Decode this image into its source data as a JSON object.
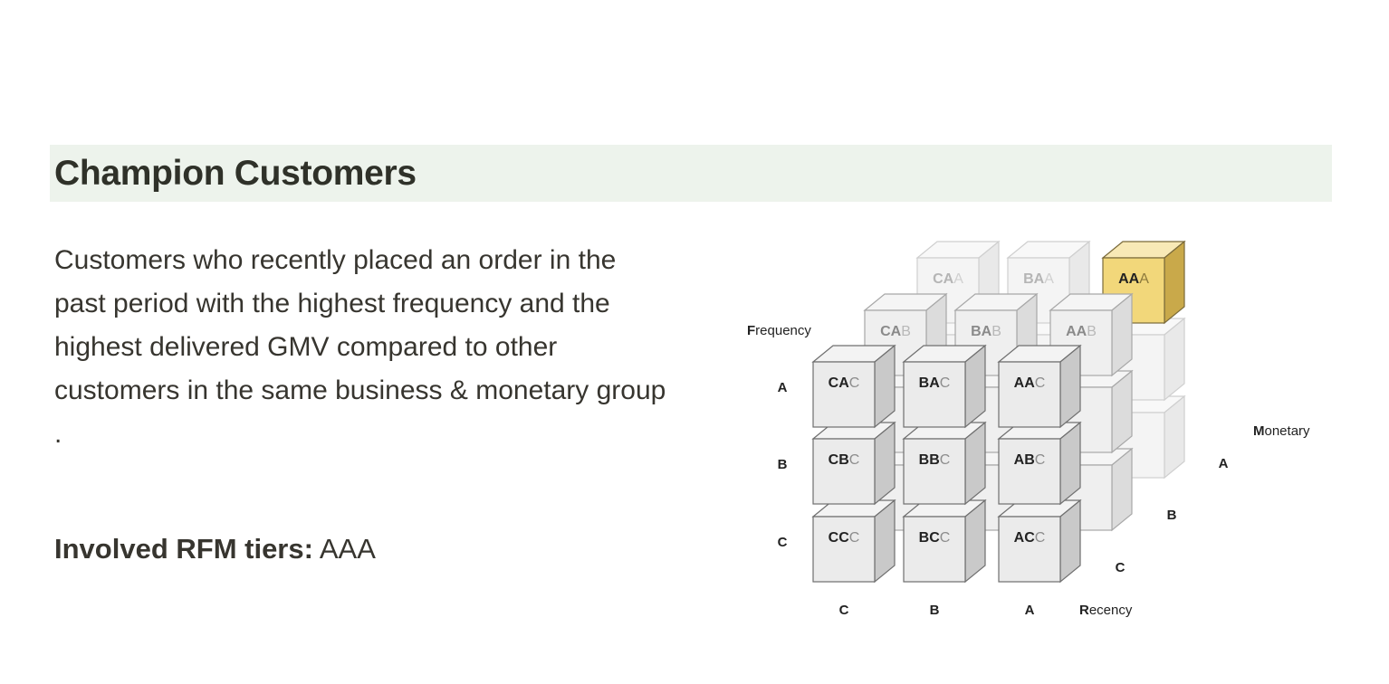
{
  "section": {
    "title": "Champion Customers",
    "description": "Customers who recently placed an order in the past period with the highest frequency and the highest delivered GMV compared to other customers in the same business & monetary group .",
    "tiers_label": "Involved RFM tiers:",
    "tiers_value": "AAA",
    "highlight_color": "#edf3ec"
  },
  "diagram": {
    "axes": {
      "frequency": {
        "name": "Frequency",
        "levels": [
          "A",
          "B",
          "C"
        ]
      },
      "recency": {
        "name": "Recency",
        "levels": [
          "C",
          "B",
          "A"
        ]
      },
      "monetary": {
        "name": "Monetary",
        "levels": [
          "A",
          "B",
          "C"
        ]
      }
    },
    "front_layer": [
      "CAC",
      "BAC",
      "AAC",
      "CBC",
      "BBC",
      "ABC",
      "CCC",
      "BCC",
      "ACC"
    ],
    "middle_layer_top": [
      "CAB",
      "BAB",
      "AAB"
    ],
    "back_layer_top": [
      "CAA",
      "BAA",
      "AAA"
    ],
    "highlighted_tier": "AAA",
    "highlight_color": "#f2d77a"
  }
}
